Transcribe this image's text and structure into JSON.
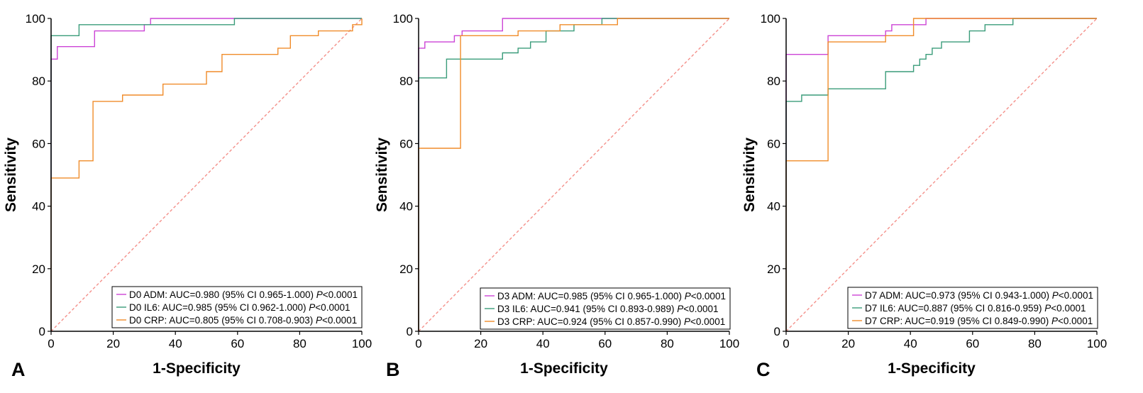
{
  "colors": {
    "ADM": "#cc44d6",
    "IL6": "#3a9c7a",
    "CRP": "#f08c2a",
    "ref": "#f4908a"
  },
  "chart_data": [
    {
      "type": "line",
      "panel_label": "A",
      "xlabel": "1-Specificity",
      "ylabel": "Sensitivity",
      "xlim": [
        0,
        100
      ],
      "ylim": [
        0,
        100
      ],
      "xticks": [
        "0",
        "20",
        "40",
        "60",
        "80",
        "100"
      ],
      "yticks": [
        "0",
        "20",
        "40",
        "60",
        "80",
        "100"
      ],
      "series": [
        {
          "key": "ADM",
          "prefix": "D0 ADM: AUC=0.980 (95% CI 0.965-1.000) ",
          "p_italic": "P",
          "p_rest": "<0.0001",
          "x": [
            0,
            0,
            2,
            2,
            14,
            14,
            30,
            30,
            32,
            32,
            100
          ],
          "y": [
            0,
            87,
            87,
            91,
            91,
            96,
            96,
            98,
            98,
            100,
            100
          ]
        },
        {
          "key": "IL6",
          "prefix": "D0 IL6: AUC=0.985 (95% CI 0.962-1.000) ",
          "p_italic": "P",
          "p_rest": "<0.0001",
          "x": [
            0,
            0,
            9,
            9,
            59,
            59,
            100
          ],
          "y": [
            0,
            94.5,
            94.5,
            98,
            98,
            100,
            100
          ]
        },
        {
          "key": "CRP",
          "prefix": "D0 CRP: AUC=0.805 (95% CI 0.708-0.903) ",
          "p_italic": "P",
          "p_rest": "<0.0001",
          "x": [
            0,
            0,
            9,
            9,
            13.5,
            13.5,
            23,
            23,
            36,
            36,
            50,
            50,
            55,
            55,
            73,
            73,
            77,
            77,
            86,
            86,
            97,
            97,
            100,
            100
          ],
          "y": [
            0,
            49,
            49,
            54.5,
            54.5,
            73.5,
            73.5,
            75.5,
            75.5,
            79,
            79,
            83,
            83,
            88.5,
            88.5,
            90.5,
            90.5,
            94.5,
            94.5,
            96,
            96,
            98,
            98,
            100
          ]
        }
      ]
    },
    {
      "type": "line",
      "panel_label": "B",
      "xlabel": "1-Specificity",
      "ylabel": "Sensitivity",
      "xlim": [
        0,
        100
      ],
      "ylim": [
        0,
        100
      ],
      "xticks": [
        "0",
        "20",
        "40",
        "60",
        "80",
        "100"
      ],
      "yticks": [
        "0",
        "20",
        "40",
        "60",
        "80",
        "100"
      ],
      "series": [
        {
          "key": "ADM",
          "prefix": "D3 ADM: AUC=0.985 (95% CI 0.965-1.000) ",
          "p_italic": "P",
          "p_rest": "<0.0001",
          "x": [
            0,
            0,
            2,
            2,
            11.5,
            11.5,
            14,
            14,
            27,
            27,
            100
          ],
          "y": [
            0,
            90.5,
            90.5,
            92.5,
            92.5,
            94.5,
            94.5,
            96,
            96,
            100,
            100
          ]
        },
        {
          "key": "IL6",
          "prefix": "D3 IL6: AUC=0.941 (95% CI 0.893-0.989) ",
          "p_italic": "P",
          "p_rest": "<0.0001",
          "x": [
            0,
            0,
            9,
            9,
            27,
            27,
            32,
            32,
            36,
            36,
            41,
            41,
            50,
            50,
            59,
            59,
            64,
            64,
            100
          ],
          "y": [
            0,
            81,
            81,
            87,
            87,
            89,
            89,
            90.5,
            90.5,
            92.5,
            92.5,
            96,
            96,
            98,
            98,
            100,
            100,
            100,
            100
          ]
        },
        {
          "key": "CRP",
          "prefix": "D3 CRP: AUC=0.924 (95% CI 0.857-0.990) ",
          "p_italic": "P",
          "p_rest": "<0.0001",
          "x": [
            0,
            0,
            13.5,
            13.5,
            32,
            32,
            45.5,
            45.5,
            64,
            64,
            100
          ],
          "y": [
            0,
            58.5,
            58.5,
            94.5,
            94.5,
            96,
            96,
            98,
            98,
            100,
            100
          ]
        }
      ]
    },
    {
      "type": "line",
      "panel_label": "C",
      "xlabel": "1-Specificity",
      "ylabel": "Sensitivity",
      "xlim": [
        0,
        100
      ],
      "ylim": [
        0,
        100
      ],
      "xticks": [
        "0",
        "20",
        "40",
        "60",
        "80",
        "100"
      ],
      "yticks": [
        "0",
        "20",
        "40",
        "60",
        "80",
        "100"
      ],
      "series": [
        {
          "key": "ADM",
          "prefix": "D7 ADM: AUC=0.973 (95% CI 0.943-1.000) ",
          "p_italic": "P",
          "p_rest": "<0.0001",
          "x": [
            0,
            0,
            13.5,
            13.5,
            32,
            32,
            34,
            34,
            45,
            45,
            100
          ],
          "y": [
            0,
            88.5,
            88.5,
            94.5,
            94.5,
            96,
            96,
            98,
            98,
            100,
            100
          ]
        },
        {
          "key": "IL6",
          "prefix": "D7 IL6: AUC=0.887 (95% CI 0.816-0.959) ",
          "p_italic": "P",
          "p_rest": "<0.0001",
          "x": [
            0,
            0,
            5,
            5,
            13.5,
            13.5,
            32,
            32,
            41,
            41,
            43,
            43,
            45,
            45,
            47,
            47,
            50,
            50,
            59,
            59,
            64,
            64,
            73,
            73,
            100
          ],
          "y": [
            0,
            73.5,
            73.5,
            75.5,
            75.5,
            77.5,
            77.5,
            83,
            83,
            85,
            85,
            87,
            87,
            88.5,
            88.5,
            90.5,
            90.5,
            92.5,
            92.5,
            96,
            96,
            98,
            98,
            100,
            100
          ]
        },
        {
          "key": "CRP",
          "prefix": "D7 CRP: AUC=0.919 (95% CI 0.849-0.990) ",
          "p_italic": "P",
          "p_rest": "<0.0001",
          "x": [
            0,
            0,
            13.5,
            13.5,
            27,
            27,
            32,
            32,
            36,
            36,
            41,
            41,
            45.5,
            45.5,
            100
          ],
          "y": [
            0,
            54.5,
            54.5,
            92.5,
            92.5,
            92.5,
            92.5,
            94.5,
            94.5,
            94.5,
            94.5,
            100,
            100,
            100,
            100
          ]
        }
      ]
    }
  ]
}
